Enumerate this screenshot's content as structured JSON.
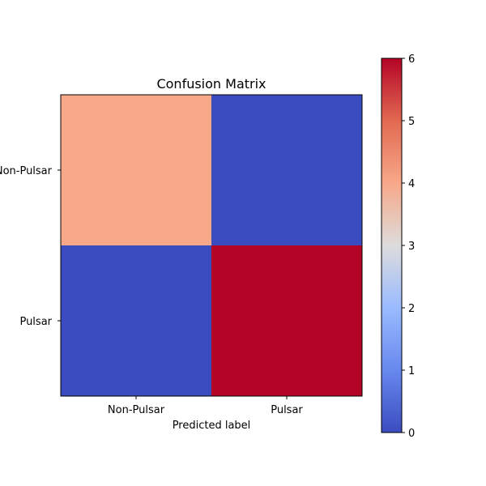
{
  "chart_data": {
    "type": "heatmap",
    "title": "Confusion Matrix",
    "xlabel": "Predicted label",
    "ylabel": "",
    "x_categories": [
      "Non-Pulsar",
      "Pulsar"
    ],
    "y_categories": [
      "Non-Pulsar",
      "Pulsar"
    ],
    "matrix": [
      [
        4,
        0
      ],
      [
        0,
        6
      ]
    ],
    "colormap": "coolwarm",
    "colorbar": {
      "min": 0,
      "max": 6,
      "ticks": [
        "0",
        "1",
        "2",
        "3",
        "4",
        "5",
        "6"
      ]
    },
    "grid": false
  }
}
